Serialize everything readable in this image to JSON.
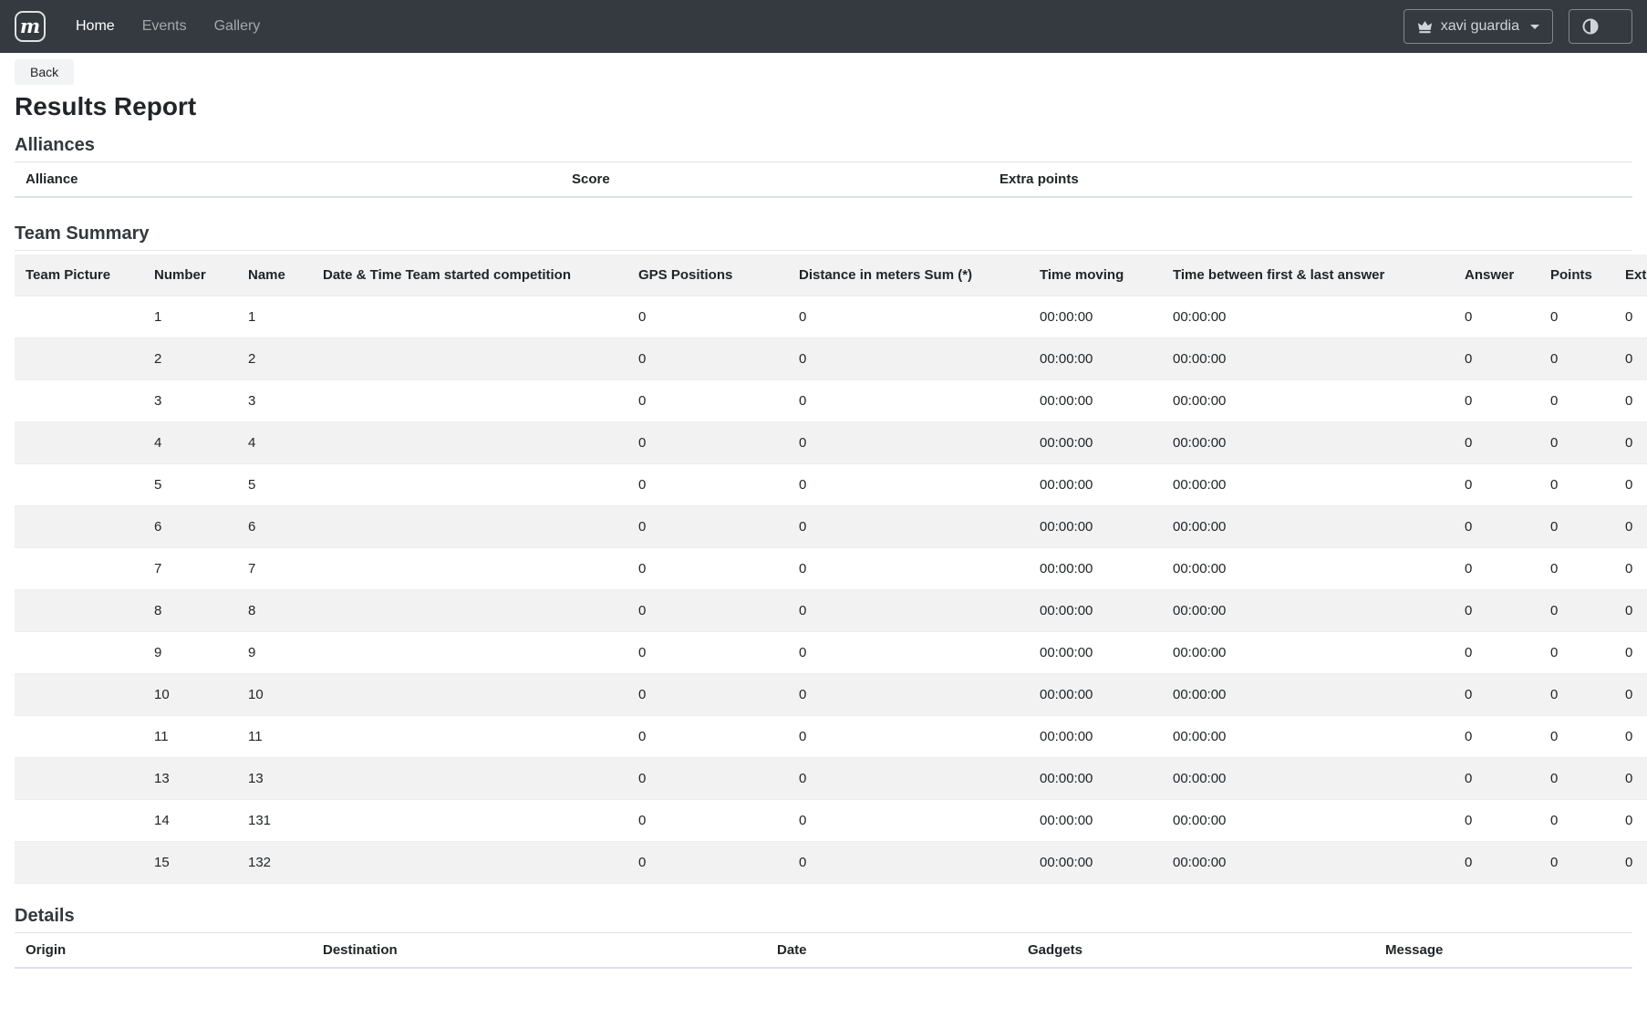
{
  "navbar": {
    "brand_letter": "m",
    "links": [
      {
        "label": "Home",
        "active": true
      },
      {
        "label": "Events",
        "active": false
      },
      {
        "label": "Gallery",
        "active": false
      }
    ],
    "user_button": {
      "label": "xavi guardia",
      "icon": "crown-icon"
    },
    "mode_button": {
      "icon": "half-circle-icon"
    }
  },
  "page": {
    "back_label": "Back",
    "title": "Results Report"
  },
  "alliances": {
    "heading": "Alliances",
    "columns": [
      "Alliance",
      "Score",
      "Extra points"
    ],
    "rows": []
  },
  "team_summary": {
    "heading": "Team Summary",
    "columns": [
      "Team Picture",
      "Number",
      "Name",
      "Date & Time Team started competition",
      "GPS Positions",
      "Distance in meters Sum (*)",
      "Time moving",
      "Time between first & last answer",
      "Answer",
      "Points",
      "Ext"
    ],
    "rows": [
      [
        "",
        "1",
        "1",
        "",
        "0",
        "0",
        "00:00:00",
        "00:00:00",
        "0",
        "0",
        "0"
      ],
      [
        "",
        "2",
        "2",
        "",
        "0",
        "0",
        "00:00:00",
        "00:00:00",
        "0",
        "0",
        "0"
      ],
      [
        "",
        "3",
        "3",
        "",
        "0",
        "0",
        "00:00:00",
        "00:00:00",
        "0",
        "0",
        "0"
      ],
      [
        "",
        "4",
        "4",
        "",
        "0",
        "0",
        "00:00:00",
        "00:00:00",
        "0",
        "0",
        "0"
      ],
      [
        "",
        "5",
        "5",
        "",
        "0",
        "0",
        "00:00:00",
        "00:00:00",
        "0",
        "0",
        "0"
      ],
      [
        "",
        "6",
        "6",
        "",
        "0",
        "0",
        "00:00:00",
        "00:00:00",
        "0",
        "0",
        "0"
      ],
      [
        "",
        "7",
        "7",
        "",
        "0",
        "0",
        "00:00:00",
        "00:00:00",
        "0",
        "0",
        "0"
      ],
      [
        "",
        "8",
        "8",
        "",
        "0",
        "0",
        "00:00:00",
        "00:00:00",
        "0",
        "0",
        "0"
      ],
      [
        "",
        "9",
        "9",
        "",
        "0",
        "0",
        "00:00:00",
        "00:00:00",
        "0",
        "0",
        "0"
      ],
      [
        "",
        "10",
        "10",
        "",
        "0",
        "0",
        "00:00:00",
        "00:00:00",
        "0",
        "0",
        "0"
      ],
      [
        "",
        "11",
        "11",
        "",
        "0",
        "0",
        "00:00:00",
        "00:00:00",
        "0",
        "0",
        "0"
      ],
      [
        "",
        "13",
        "13",
        "",
        "0",
        "0",
        "00:00:00",
        "00:00:00",
        "0",
        "0",
        "0"
      ],
      [
        "",
        "14",
        "131",
        "",
        "0",
        "0",
        "00:00:00",
        "00:00:00",
        "0",
        "0",
        "0"
      ],
      [
        "",
        "15",
        "132",
        "",
        "0",
        "0",
        "00:00:00",
        "00:00:00",
        "0",
        "0",
        "0"
      ]
    ]
  },
  "details": {
    "heading": "Details",
    "columns": [
      "Origin",
      "Destination",
      "Date",
      "Gadgets",
      "Message"
    ],
    "rows": []
  },
  "colors": {
    "navbar_bg": "#343a40",
    "stripe": "#f2f2f2",
    "border": "#dee2e6",
    "text": "#212529"
  }
}
